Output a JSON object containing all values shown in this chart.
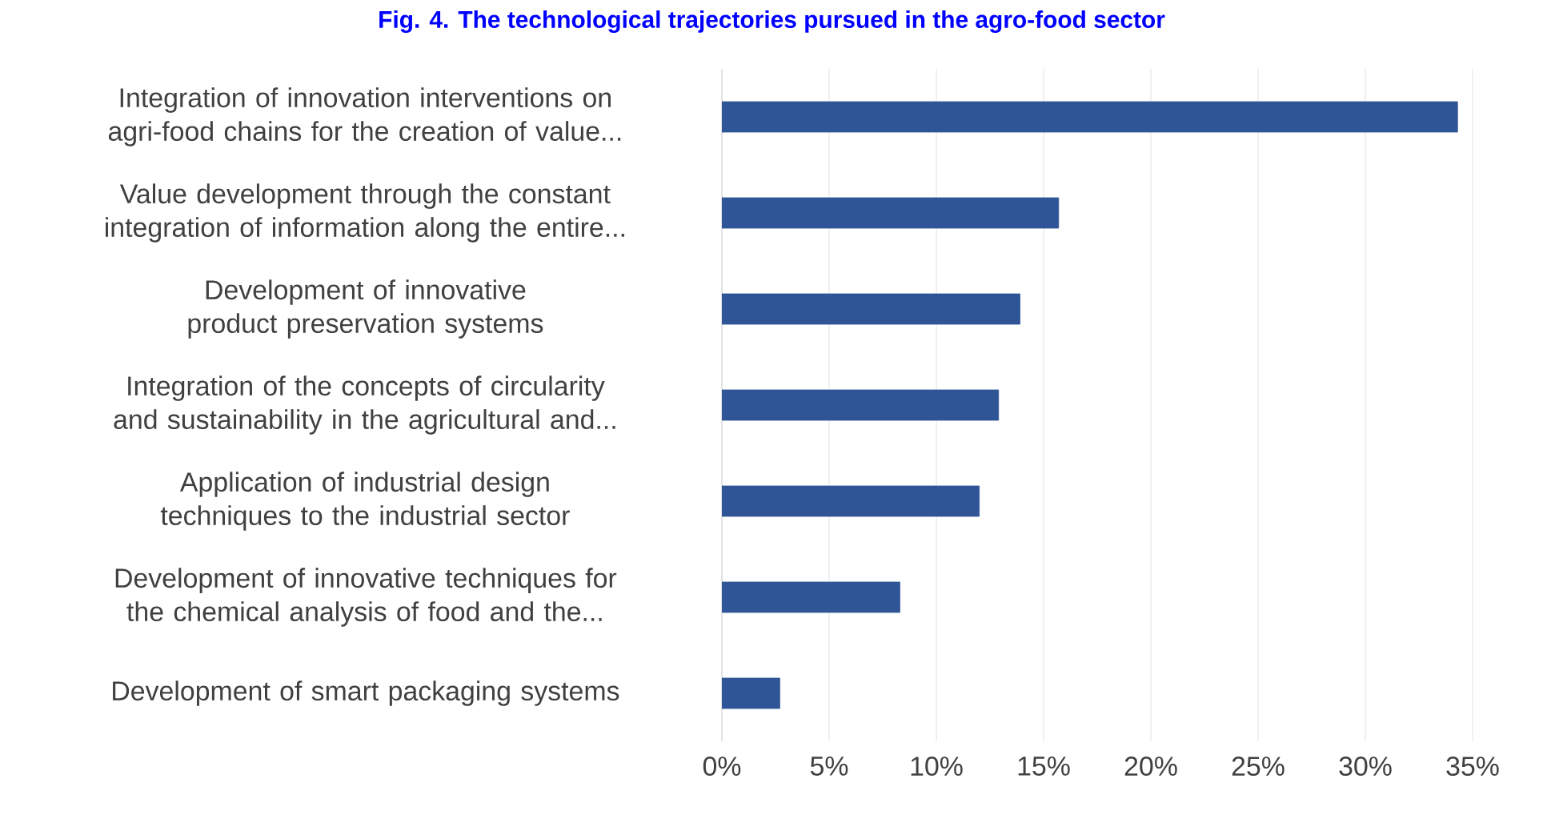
{
  "chart_data": {
    "type": "bar",
    "orientation": "horizontal",
    "title": "Fig. 4. The technological trajectories pursued in the agro-food sector",
    "categories": [
      "Integration of innovation interventions on agri-food chains for the creation of value...",
      "Value development through the constant integration of information along the entire...",
      "Development of innovative product preservation systems",
      "Integration of the concepts of circularity and sustainability in the agricultural and...",
      "Application of industrial design techniques to the industrial sector",
      "Development of innovative techniques for the chemical analysis of food and the...",
      "Development of smart packaging systems"
    ],
    "values": [
      34.3,
      15.7,
      13.9,
      12.9,
      12.0,
      8.3,
      2.7
    ],
    "color": "#2f5597",
    "xlim": [
      0,
      35
    ],
    "xticks": [
      {
        "value": 0,
        "label": "0%"
      },
      {
        "value": 5,
        "label": "5%"
      },
      {
        "value": 10,
        "label": "10%"
      },
      {
        "value": 15,
        "label": "15%"
      },
      {
        "value": 20,
        "label": "20%"
      },
      {
        "value": 25,
        "label": "25%"
      },
      {
        "value": 30,
        "label": "30%"
      },
      {
        "value": 35,
        "label": "35%"
      }
    ],
    "grid": "x"
  }
}
